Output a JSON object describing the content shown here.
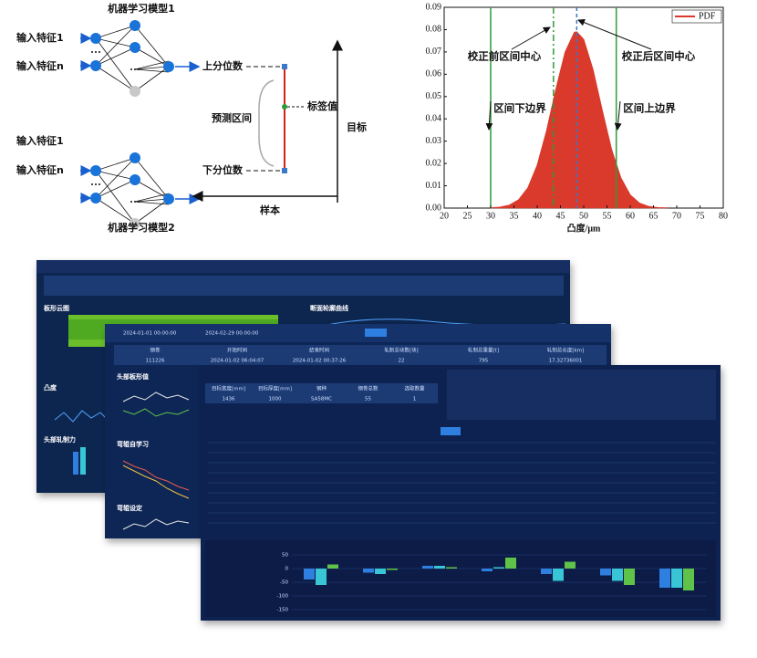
{
  "diagram": {
    "model1": "机器学习模型1",
    "model2": "机器学习模型2",
    "input1": "输入特征1",
    "inputn": "输入特征n",
    "upper": "上分位数",
    "lower": "下分位数",
    "label_value": "标签值",
    "interval": "预测区间",
    "target": "目标",
    "sample": "样本"
  },
  "chart_data": {
    "type": "area",
    "x": [
      30,
      32,
      34,
      36,
      38,
      40,
      42,
      44,
      46,
      48,
      48.5,
      50,
      52,
      54,
      56,
      58,
      60,
      62,
      64,
      66,
      68
    ],
    "series": [
      {
        "name": "PDF",
        "color": "#d93a2b",
        "values": [
          0.0001,
          0.0004,
          0.0013,
          0.0037,
          0.0091,
          0.0192,
          0.0345,
          0.0531,
          0.0699,
          0.0788,
          0.079,
          0.0756,
          0.0621,
          0.0437,
          0.0262,
          0.0135,
          0.0059,
          0.0022,
          0.0007,
          0.0002,
          0.0001
        ]
      }
    ],
    "xlim": [
      20,
      80
    ],
    "ylim": [
      0,
      0.09
    ],
    "xticks": [
      20,
      25,
      30,
      35,
      40,
      45,
      50,
      55,
      60,
      65,
      70,
      75,
      80
    ],
    "yticks": [
      {
        "value": 0,
        "label": "0.00"
      },
      {
        "value": 0.01,
        "label": "0.01"
      },
      {
        "value": 0.02,
        "label": "0.02"
      },
      {
        "value": 0.03,
        "label": "0.03"
      },
      {
        "value": 0.04,
        "label": "0.04"
      },
      {
        "value": 0.05,
        "label": "0.05"
      },
      {
        "value": 0.06,
        "label": "0.06"
      },
      {
        "value": 0.07,
        "label": "0.07"
      },
      {
        "value": 0.08,
        "label": "0.08"
      },
      {
        "value": 0.09,
        "label": "0.09"
      }
    ],
    "x_label": "凸度/μm",
    "legend": "upper right",
    "vlines": [
      {
        "x": 30,
        "color": "#2e9b3a",
        "style": "solid"
      },
      {
        "x": 43.5,
        "color": "#2e9b3a",
        "style": "dashdot"
      },
      {
        "x": 48.5,
        "color": "#3a78c9",
        "style": "dashed"
      },
      {
        "x": 57,
        "color": "#2e9b3a",
        "style": "solid"
      }
    ],
    "annotations": [
      "校正前区间中心",
      "校正后区间中心",
      "区间下边界",
      "区间上边界"
    ]
  },
  "dashboards": {
    "back": {
      "panels": [
        "板形云图",
        "断面轮廓曲线",
        "凸度",
        "头部轧制力"
      ]
    },
    "middle": {
      "from": "2024-01-01 00:00:00",
      "to": "2024-02-29 00:00:00",
      "header": [
        "钢卷",
        "开始时间",
        "结束时间",
        "轧制总块数[块]",
        "轧制总重量[t]",
        "轧制总长度[km]"
      ],
      "row": [
        "111226",
        "2024-01-02 06:04:07",
        "2024-01-02 00:37:26",
        "22",
        "795",
        "17.32736001"
      ],
      "panels": [
        "头部板形值",
        "弯辊自学习",
        "弯辊设定"
      ]
    },
    "front": {
      "header": [
        "目标宽度[mm]",
        "目标厚度[mm]",
        "钢种",
        "钢卷总数",
        "选取数量"
      ],
      "row": [
        "1436",
        "1000",
        "SA58MC",
        "55",
        "1"
      ],
      "chart": {
        "type": "bar",
        "ylim": [
          -150,
          50
        ],
        "yticks": [
          -150,
          -100,
          -50,
          0,
          50
        ],
        "series": [
          {
            "color": "#2f7fe0",
            "values": [
              -40,
              -15,
              10,
              -10,
              -20,
              -25,
              -70
            ]
          },
          {
            "color": "#38c6d6",
            "values": [
              -60,
              -20,
              10,
              5,
              -45,
              -45,
              -70
            ]
          },
          {
            "color": "#5ec24a",
            "values": [
              15,
              -5,
              5,
              40,
              25,
              -60,
              -80
            ]
          }
        ]
      }
    }
  }
}
